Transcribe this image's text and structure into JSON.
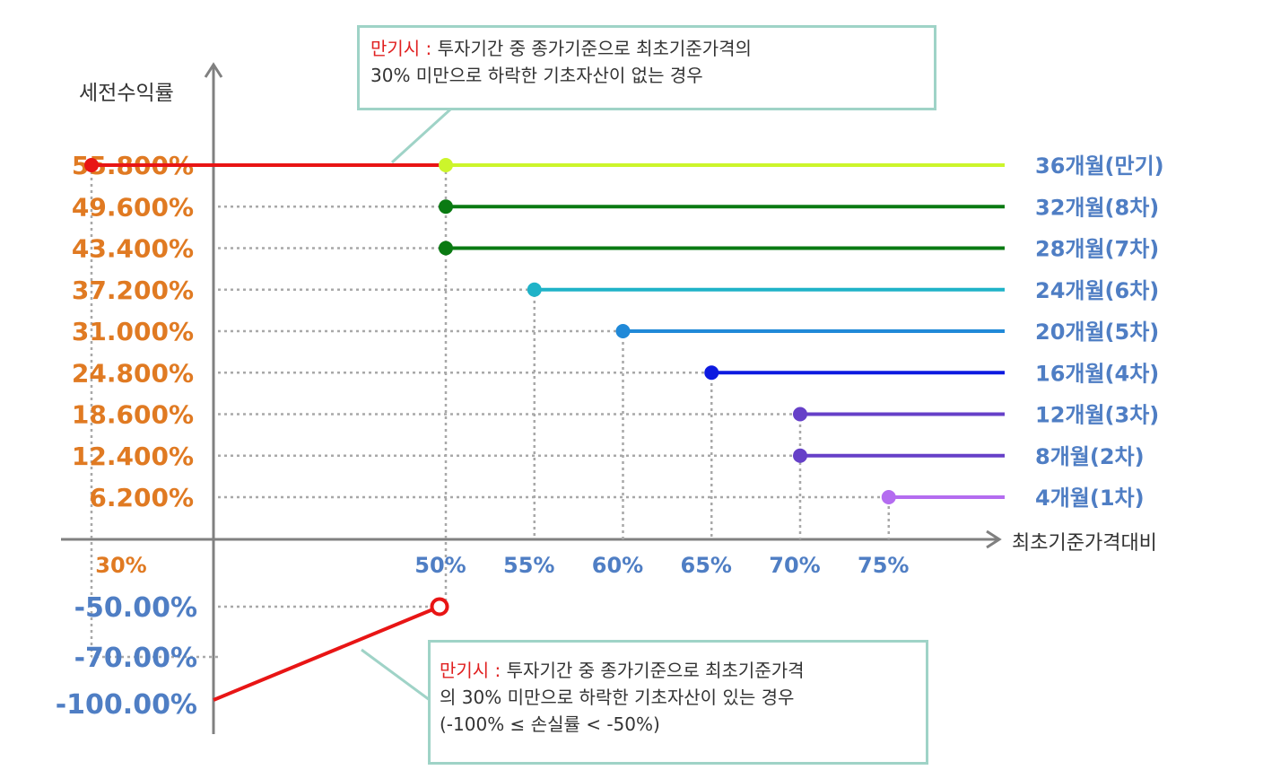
{
  "chart_data": {
    "type": "line",
    "ylabel": "세전수익률",
    "xlabel": "최초기준가격대비",
    "x_tick_labels": [
      "30%",
      "50%",
      "55%",
      "60%",
      "65%",
      "70%",
      "75%"
    ],
    "series": [
      {
        "name": "36개월(만기)",
        "barrier_pct": 50,
        "return_label": "55.800%",
        "color": "#ccf52b"
      },
      {
        "name": "32개월(8차)",
        "barrier_pct": 50,
        "return_label": "49.600%",
        "color": "#0a7a12"
      },
      {
        "name": "28개월(7차)",
        "barrier_pct": 50,
        "return_label": "43.400%",
        "color": "#0a7a12"
      },
      {
        "name": "24개월(6차)",
        "barrier_pct": 55,
        "return_label": "37.200%",
        "color": "#1fb3c8"
      },
      {
        "name": "20개월(5차)",
        "barrier_pct": 60,
        "return_label": "31.000%",
        "color": "#2089d8"
      },
      {
        "name": "16개월(4차)",
        "barrier_pct": 65,
        "return_label": "24.800%",
        "color": "#0d1ae0"
      },
      {
        "name": "12개월(3차)",
        "barrier_pct": 70,
        "return_label": "18.600%",
        "color": "#6640c8"
      },
      {
        "name": "8개월(2차)",
        "barrier_pct": 70,
        "return_label": "12.400%",
        "color": "#6640c8"
      },
      {
        "name": "4개월(1차)",
        "barrier_pct": 75,
        "return_label": "6.200%",
        "color": "#b46cf0"
      }
    ],
    "maturity_gain_segment": {
      "from_pct": 30,
      "to_pct": 50,
      "return_label": "55.800%",
      "color": "#e81515"
    },
    "loss_line": {
      "return_labels": [
        "-50.00%",
        "-70.00%",
        "-100.00%"
      ],
      "color": "#e81515"
    },
    "colors": {
      "positive_label": "#e07a22",
      "negative_label": "#4f7ec4",
      "x_tick_30": "#e07a22",
      "x_tick_other": "#4f7ec4",
      "axis": "#808080",
      "grid": "#a8a8a8"
    }
  },
  "callouts": {
    "top": {
      "highlight": "만기시 :",
      "line1": " 투자기간 중 종가기준으로 최초기준가격의",
      "line2": "30% 미만으로 하락한 기초자산이 없는 경우"
    },
    "bottom": {
      "highlight": "만기시 :",
      "line1": " 투자기간 중 종가기준으로 최초기준가격",
      "line2": "의 30% 미만으로 하락한 기초자산이 있는 경우",
      "line3": "(-100% ≤ 손실률 < -50%)"
    }
  }
}
